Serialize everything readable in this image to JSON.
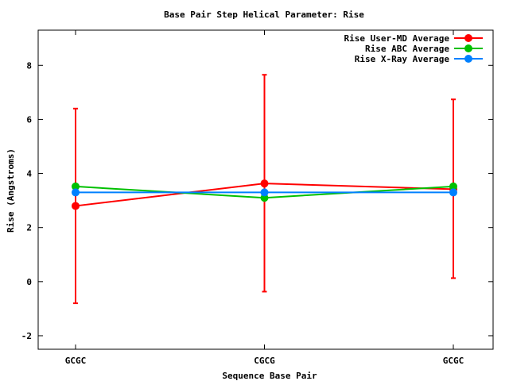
{
  "chart_data": {
    "type": "line",
    "title": "Base Pair Step Helical Parameter: Rise",
    "xlabel": "Sequence Base Pair",
    "ylabel": "Rise (Angstroms)",
    "categories": [
      "GCGC",
      "CGCG",
      "GCGC"
    ],
    "ylim": [
      -2.5,
      9.3
    ],
    "yticks": [
      -2,
      0,
      2,
      4,
      6,
      8
    ],
    "grid": false,
    "legend_position": "top-right",
    "series": [
      {
        "name": "Rise User-MD Average",
        "color": "#ff0000",
        "values": [
          2.8,
          3.63,
          3.42
        ],
        "error_low": [
          -0.8,
          -0.37,
          0.13
        ],
        "error_high": [
          6.4,
          7.65,
          6.74
        ]
      },
      {
        "name": "Rise ABC Average",
        "color": "#00c000",
        "values": [
          3.52,
          3.1,
          3.52
        ]
      },
      {
        "name": "Rise X-Ray Average",
        "color": "#0080ff",
        "values": [
          3.3,
          3.3,
          3.3
        ]
      }
    ]
  }
}
